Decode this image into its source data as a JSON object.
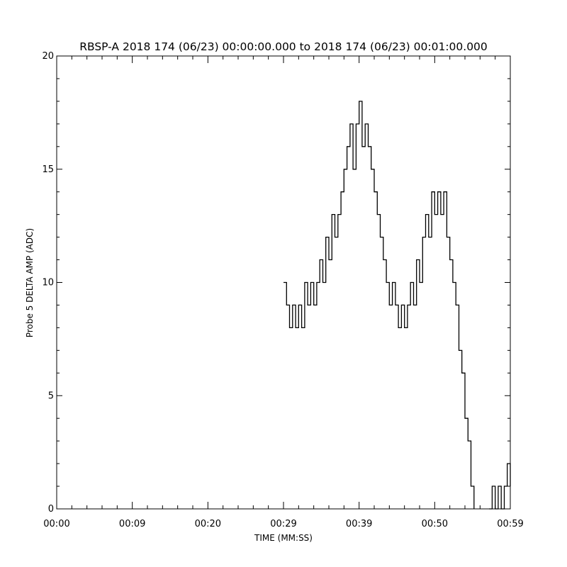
{
  "chart_data": {
    "type": "line",
    "title": "RBSP-A 2018 174 (06/23) 00:00:00.000 to 2018 174 (06/23) 00:01:00.000",
    "xlabel": "TIME (MM:SS)",
    "ylabel": "Probe 5 DELTA AMP (ADC)",
    "xlim": [
      0,
      60
    ],
    "ylim": [
      0,
      20
    ],
    "x_ticks": [
      {
        "value": 0,
        "label": "00:00"
      },
      {
        "value": 10,
        "label": "00:09"
      },
      {
        "value": 20,
        "label": "00:20"
      },
      {
        "value": 30,
        "label": "00:29"
      },
      {
        "value": 40,
        "label": "00:39"
      },
      {
        "value": 50,
        "label": "00:50"
      },
      {
        "value": 60,
        "label": "00:59"
      }
    ],
    "y_ticks": [
      {
        "value": 0,
        "label": "0"
      },
      {
        "value": 5,
        "label": "5"
      },
      {
        "value": 10,
        "label": "10"
      },
      {
        "value": 15,
        "label": "15"
      },
      {
        "value": 20,
        "label": "20"
      }
    ],
    "grid": false,
    "line_color": "#000000",
    "series": [
      {
        "x": [
          30.0,
          30.4,
          30.8,
          31.2,
          31.6,
          32.0,
          32.4,
          32.8,
          33.2,
          33.6,
          34.0,
          34.4,
          34.8,
          35.2,
          35.6,
          36.0,
          36.4,
          36.8,
          37.2,
          37.6,
          38.0,
          38.4,
          38.8,
          39.2,
          39.6,
          40.0,
          40.4,
          40.8,
          41.2,
          41.6,
          42.0,
          42.4,
          42.8,
          43.2,
          43.6,
          44.0,
          44.4,
          44.8,
          45.2,
          45.6,
          46.0,
          46.4,
          46.8,
          47.2,
          47.6,
          48.0,
          48.4,
          48.8,
          49.2,
          49.6,
          50.0,
          50.4,
          50.8,
          51.2,
          51.6,
          52.0,
          52.4,
          52.8,
          53.2,
          53.6,
          54.0,
          54.4,
          54.8,
          55.2,
          55.6,
          56.0,
          56.4,
          56.8,
          57.2,
          57.6,
          58.0,
          58.4,
          58.8,
          59.2,
          59.6,
          60.0
        ],
        "y": [
          10,
          9,
          8,
          9,
          8,
          9,
          8,
          10,
          9,
          10,
          9,
          10,
          11,
          10,
          12,
          11,
          13,
          12,
          13,
          14,
          15,
          16,
          17,
          15,
          17,
          18,
          16,
          17,
          16,
          15,
          14,
          13,
          12,
          11,
          10,
          9,
          10,
          9,
          8,
          9,
          8,
          9,
          10,
          9,
          11,
          10,
          12,
          13,
          12,
          14,
          13,
          14,
          13,
          14,
          12,
          11,
          10,
          9,
          7,
          6,
          4,
          3,
          1,
          0,
          null,
          null,
          null,
          null,
          0,
          1,
          0,
          1,
          0,
          1,
          2,
          1
        ]
      }
    ]
  }
}
